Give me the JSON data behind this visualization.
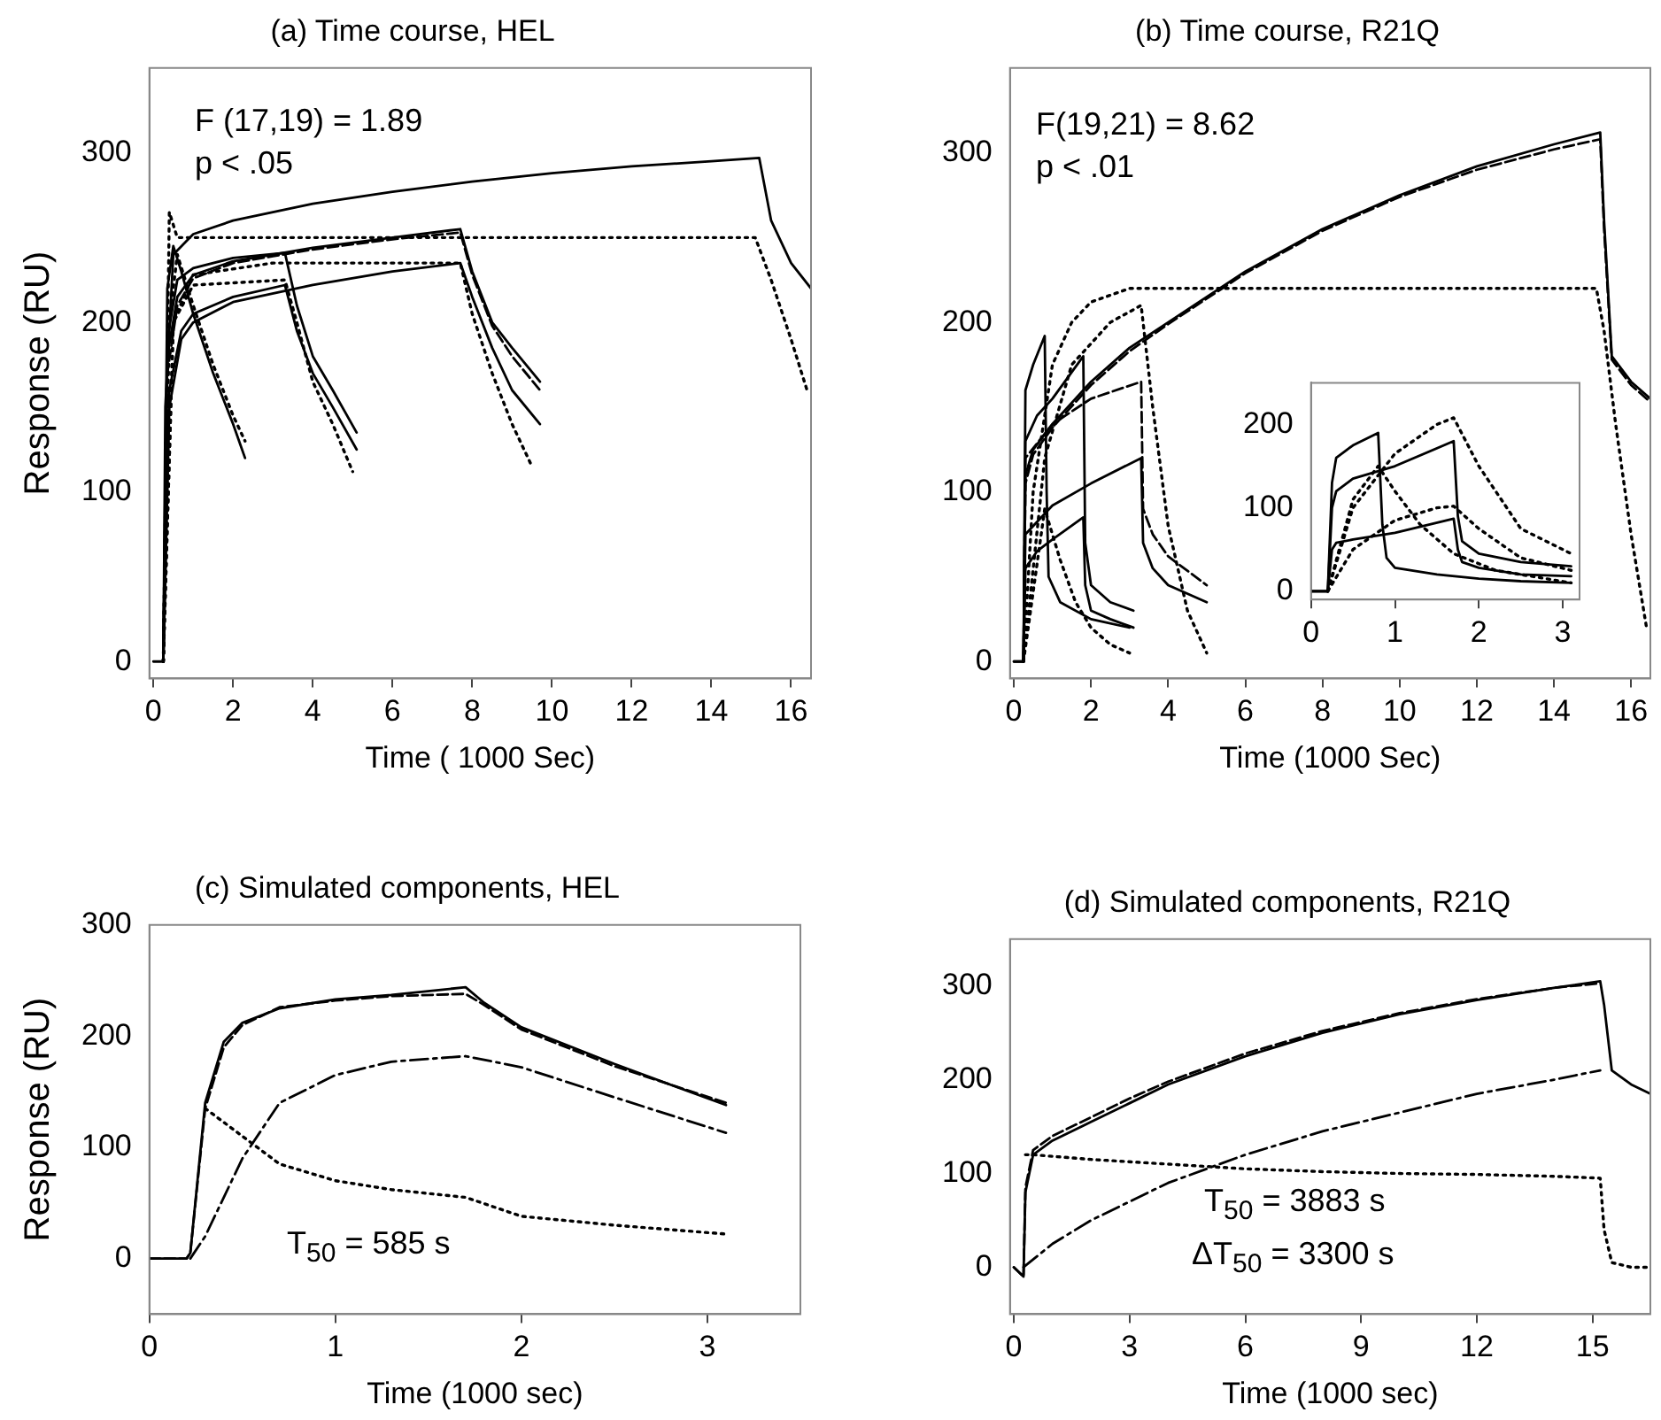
{
  "chart_data": [
    {
      "type": "line",
      "title": "(a) Time course, HEL",
      "xlabel": "Time ( 1000 Sec)",
      "ylabel": "Response (RU)",
      "xlim": [
        -0.1,
        16.5
      ],
      "ylim": [
        -10,
        350
      ],
      "xticks": [
        0,
        2,
        4,
        6,
        8,
        10,
        12,
        14,
        16
      ],
      "yticks": [
        0,
        100,
        200,
        300
      ],
      "marker": "none",
      "annotations": [
        "F (17,19) = 1.89",
        "p < .05"
      ],
      "series": [
        {
          "color": "#000000",
          "line_style": "solid",
          "x": [
            0,
            0.25,
            0.3,
            0.5,
            1,
            2,
            4,
            6,
            8,
            10,
            12,
            14,
            15.2,
            15.5,
            16,
            16.5
          ],
          "values": [
            0,
            0,
            150,
            240,
            252,
            260,
            270,
            277,
            283,
            288,
            292,
            295,
            297,
            260,
            235,
            220
          ]
        },
        {
          "color": "#000000",
          "line_style": "dotted",
          "x": [
            0.25,
            0.4,
            0.6,
            1,
            15.1,
            15.5,
            16,
            16.4
          ],
          "values": [
            0,
            265,
            250,
            250,
            250,
            225,
            190,
            160
          ]
        },
        {
          "color": "#000000",
          "line_style": "solid",
          "x": [
            0.25,
            0.35,
            0.6,
            1,
            2,
            3,
            4,
            6,
            7.7,
            8,
            8.5,
            9,
            9.7
          ],
          "values": [
            0,
            180,
            215,
            228,
            236,
            240,
            244,
            250,
            255,
            230,
            200,
            185,
            165
          ]
        },
        {
          "color": "#000000",
          "line_style": "dashed",
          "x": [
            0.25,
            0.35,
            0.6,
            1,
            2,
            3,
            4,
            6,
            7.7,
            8,
            8.5,
            9,
            9.7
          ],
          "values": [
            0,
            170,
            210,
            226,
            235,
            239,
            243,
            249,
            253,
            228,
            198,
            180,
            160
          ]
        },
        {
          "color": "#000000",
          "line_style": "solid",
          "x": [
            0.25,
            0.4,
            0.7,
            1,
            2,
            4,
            6,
            7.7,
            8,
            8.5,
            9,
            9.7
          ],
          "values": [
            0,
            150,
            190,
            200,
            212,
            222,
            230,
            235,
            215,
            185,
            160,
            140
          ]
        },
        {
          "color": "#000000",
          "line_style": "dotted",
          "x": [
            0.25,
            0.5,
            1,
            3,
            7.7,
            8,
            8.5,
            9,
            9.5
          ],
          "values": [
            0,
            200,
            228,
            235,
            235,
            205,
            170,
            140,
            115
          ]
        },
        {
          "color": "#000000",
          "line_style": "solid",
          "x": [
            0.25,
            0.35,
            0.6,
            1,
            2,
            3.3,
            3.6,
            4,
            4.5,
            5.1
          ],
          "values": [
            0,
            190,
            225,
            232,
            238,
            241,
            210,
            180,
            160,
            135
          ]
        },
        {
          "color": "#000000",
          "line_style": "solid",
          "x": [
            0.25,
            0.4,
            0.7,
            1,
            2,
            3.3,
            3.6,
            4,
            4.5,
            5.1
          ],
          "values": [
            0,
            160,
            195,
            205,
            215,
            222,
            195,
            170,
            150,
            125
          ]
        },
        {
          "color": "#000000",
          "line_style": "dotted",
          "x": [
            0.25,
            0.5,
            1,
            3.3,
            3.6,
            4,
            4.5,
            5
          ],
          "values": [
            0,
            200,
            222,
            225,
            200,
            165,
            140,
            112
          ]
        },
        {
          "color": "#000000",
          "line_style": "solid",
          "x": [
            0.25,
            0.35,
            0.5,
            0.7,
            1,
            1.5,
            2,
            2.3
          ],
          "values": [
            0,
            220,
            245,
            230,
            205,
            170,
            140,
            120
          ]
        },
        {
          "color": "#000000",
          "line_style": "dotted",
          "x": [
            0.25,
            0.4,
            0.6,
            1,
            1.5,
            2,
            2.3
          ],
          "values": [
            0,
            200,
            240,
            210,
            175,
            145,
            130
          ]
        }
      ]
    },
    {
      "type": "line",
      "title": "(b) Time course, R21Q",
      "xlabel": "Time (1000 Sec)",
      "xlim": [
        -0.1,
        16.5
      ],
      "ylim": [
        -10,
        350
      ],
      "xticks": [
        0,
        2,
        4,
        6,
        8,
        10,
        12,
        14,
        16
      ],
      "yticks": [
        0,
        100,
        200,
        300
      ],
      "marker": "none",
      "annotations": [
        "F(19,21) = 8.62",
        "p < .01"
      ],
      "series": [
        {
          "color": "#000000",
          "line_style": "solid",
          "x": [
            0,
            0.25,
            0.3,
            0.5,
            1,
            2,
            3,
            4,
            6,
            8,
            10,
            12,
            14,
            15.2,
            15.3,
            15.5,
            16,
            16.5
          ],
          "values": [
            0,
            0,
            110,
            125,
            140,
            165,
            185,
            200,
            230,
            255,
            275,
            292,
            305,
            312,
            260,
            180,
            165,
            155
          ]
        },
        {
          "color": "#000000",
          "line_style": "dashed",
          "x": [
            0,
            0.25,
            0.3,
            0.5,
            1,
            2,
            3,
            4,
            6,
            8,
            10,
            12,
            14,
            15.2,
            15.3,
            15.5,
            16,
            16.5
          ],
          "values": [
            0,
            0,
            105,
            122,
            138,
            163,
            183,
            199,
            229,
            254,
            274,
            290,
            302,
            308,
            255,
            178,
            163,
            153
          ]
        },
        {
          "color": "#000000",
          "line_style": "dotted",
          "x": [
            0.25,
            0.5,
            1,
            1.5,
            2,
            3,
            4,
            15.1,
            15.3,
            15.6,
            16,
            16.4
          ],
          "values": [
            0,
            100,
            175,
            200,
            212,
            220,
            220,
            220,
            195,
            140,
            75,
            20
          ]
        },
        {
          "color": "#000000",
          "line_style": "solid",
          "x": [
            0.25,
            0.3,
            0.5,
            0.8,
            0.85,
            0.9,
            1.2,
            2,
            3
          ],
          "values": [
            0,
            160,
            175,
            192,
            100,
            50,
            35,
            25,
            20
          ]
        },
        {
          "color": "#000000",
          "line_style": "solid",
          "x": [
            0.25,
            0.3,
            0.6,
            1,
            1.8,
            1.85,
            2,
            2.5,
            3.1
          ],
          "values": [
            0,
            130,
            145,
            155,
            180,
            70,
            45,
            35,
            30
          ]
        },
        {
          "color": "#000000",
          "line_style": "solid",
          "x": [
            0.25,
            0.3,
            0.6,
            1,
            1.8,
            1.85,
            2,
            2.5,
            3.1
          ],
          "values": [
            0,
            55,
            65,
            72,
            85,
            45,
            30,
            25,
            20
          ]
        },
        {
          "color": "#000000",
          "line_style": "solid",
          "x": [
            0.25,
            0.3,
            1,
            2,
            3.3,
            3.35,
            3.6,
            4,
            5
          ],
          "values": [
            0,
            75,
            92,
            105,
            120,
            70,
            55,
            45,
            35
          ]
        },
        {
          "color": "#000000",
          "line_style": "dashed",
          "x": [
            0.25,
            0.3,
            1,
            2,
            3.3,
            3.35,
            3.6,
            4,
            5
          ],
          "values": [
            0,
            120,
            140,
            155,
            165,
            90,
            75,
            62,
            45
          ]
        },
        {
          "color": "#000000",
          "line_style": "dotted",
          "x": [
            0.25,
            0.8,
            1.5,
            2.5,
            3.3,
            3.6,
            4,
            4.5,
            5
          ],
          "values": [
            0,
            120,
            175,
            200,
            210,
            150,
            80,
            30,
            5
          ]
        },
        {
          "color": "#000000",
          "line_style": "dotted",
          "x": [
            0.25,
            0.8,
            1.2,
            1.6,
            2,
            2.5,
            3
          ],
          "values": [
            0,
            90,
            60,
            35,
            20,
            10,
            5
          ]
        }
      ]
    },
    {
      "type": "line",
      "xlim": [
        0,
        3.2
      ],
      "ylim": [
        -10,
        250
      ],
      "xticks": [
        0,
        1,
        2,
        3
      ],
      "yticks": [
        0,
        100,
        200
      ],
      "marker": "none",
      "series": [
        {
          "color": "#000000",
          "line_style": "solid",
          "x": [
            0,
            0.2,
            0.25,
            0.3,
            0.5,
            0.8,
            0.85,
            0.9,
            1,
            1.5,
            2,
            2.5,
            3.1
          ],
          "values": [
            0,
            0,
            130,
            160,
            175,
            190,
            80,
            40,
            28,
            20,
            15,
            12,
            10
          ]
        },
        {
          "color": "#000000",
          "line_style": "solid",
          "x": [
            0,
            0.2,
            0.25,
            0.3,
            0.5,
            1,
            1.7,
            1.75,
            1.8,
            2,
            2.5,
            3.1
          ],
          "values": [
            0,
            0,
            100,
            120,
            135,
            150,
            180,
            90,
            60,
            45,
            35,
            30
          ]
        },
        {
          "color": "#000000",
          "line_style": "solid",
          "x": [
            0,
            0.2,
            0.25,
            0.3,
            0.5,
            1,
            1.7,
            1.75,
            1.8,
            2,
            2.5,
            3.1
          ],
          "values": [
            0,
            0,
            50,
            58,
            62,
            70,
            87,
            50,
            35,
            28,
            20,
            18
          ]
        },
        {
          "color": "#000000",
          "line_style": "dotted",
          "x": [
            0.2,
            0.5,
            1,
            1.5,
            1.7,
            2,
            2.5,
            3.1
          ],
          "values": [
            0,
            100,
            165,
            200,
            208,
            150,
            75,
            45
          ]
        },
        {
          "color": "#000000",
          "line_style": "dotted",
          "x": [
            0.2,
            0.5,
            1,
            1.5,
            1.7,
            2,
            2.5,
            3.1
          ],
          "values": [
            0,
            50,
            85,
            100,
            102,
            75,
            40,
            25
          ]
        },
        {
          "color": "#000000",
          "line_style": "dotted",
          "x": [
            0.2,
            0.5,
            0.8,
            1,
            1.3,
            1.7,
            2.2,
            3.1
          ],
          "values": [
            0,
            110,
            150,
            120,
            80,
            45,
            25,
            10
          ]
        }
      ]
    },
    {
      "type": "line",
      "title": "(c) Simulated components, HEL",
      "xlabel": "Time (1000 sec)",
      "ylabel": "Response (RU)",
      "xlim": [
        0,
        3.5
      ],
      "ylim": [
        -50,
        300
      ],
      "xticks": [
        0,
        1,
        2,
        3
      ],
      "yticks": [
        0,
        100,
        200,
        300
      ],
      "marker": "none",
      "annotations": [
        "T$_{50}$ = 585 s"
      ],
      "series": [
        {
          "color": "#000000",
          "line_style": "solid",
          "x": [
            0,
            0.2,
            0.22,
            0.3,
            0.4,
            0.5,
            0.7,
            1,
            1.3,
            1.7,
            1.8,
            2,
            2.5,
            3.1
          ],
          "values": [
            0,
            0,
            5,
            140,
            195,
            212,
            225,
            233,
            237,
            244,
            230,
            208,
            175,
            138
          ]
        },
        {
          "color": "#000000",
          "line_style": "dashed",
          "x": [
            0,
            0.2,
            0.22,
            0.3,
            0.4,
            0.5,
            0.7,
            1,
            1.3,
            1.7,
            1.8,
            2,
            2.5,
            3.1
          ],
          "values": [
            0,
            0,
            5,
            135,
            190,
            210,
            226,
            232,
            236,
            238,
            228,
            206,
            173,
            140
          ]
        },
        {
          "color": "#000000",
          "line_style": "dashdot",
          "x": [
            0.22,
            0.3,
            0.5,
            0.7,
            1,
            1.3,
            1.7,
            2,
            2.5,
            3.1
          ],
          "values": [
            0,
            20,
            90,
            140,
            165,
            177,
            182,
            172,
            145,
            113
          ]
        },
        {
          "color": "#000000",
          "line_style": "dotted",
          "x": [
            0.3,
            0.5,
            0.7,
            1,
            1.3,
            1.7,
            2,
            2.5,
            3.1
          ],
          "values": [
            135,
            110,
            85,
            70,
            62,
            55,
            38,
            30,
            22
          ]
        }
      ]
    },
    {
      "type": "line",
      "title": "(d) Simulated components, R21Q",
      "xlabel": "Time (1000 sec)",
      "xlim": [
        -0.1,
        16.5
      ],
      "ylim": [
        -50,
        350
      ],
      "xticks": [
        0,
        3,
        6,
        9,
        12,
        15
      ],
      "yticks": [
        0,
        100,
        200,
        300
      ],
      "marker": "none",
      "annotations": [
        "T$_{50}$ = 3883 s",
        "ΔT$_{50}$ = 3300 s"
      ],
      "series": [
        {
          "color": "#000000",
          "line_style": "solid",
          "x": [
            0,
            0.25,
            0.3,
            0.5,
            1,
            2,
            3,
            4,
            6,
            8,
            10,
            12,
            14,
            15.2,
            15.3,
            15.5,
            16,
            16.5
          ],
          "values": [
            0,
            -10,
            80,
            120,
            135,
            155,
            175,
            195,
            225,
            250,
            270,
            285,
            298,
            305,
            280,
            210,
            195,
            185
          ]
        },
        {
          "color": "#000000",
          "line_style": "dashed",
          "x": [
            0,
            0.25,
            0.3,
            0.5,
            1,
            2,
            3,
            4,
            6,
            8,
            10,
            12,
            14,
            15.2
          ],
          "values": [
            0,
            -10,
            85,
            125,
            140,
            160,
            180,
            198,
            228,
            252,
            271,
            286,
            298,
            303
          ]
        },
        {
          "color": "#000000",
          "line_style": "dashdot",
          "x": [
            0.25,
            1,
            2,
            3,
            4,
            6,
            8,
            10,
            12,
            14,
            15.2
          ],
          "values": [
            0,
            25,
            50,
            70,
            90,
            120,
            145,
            165,
            185,
            200,
            210
          ]
        },
        {
          "color": "#000000",
          "line_style": "dotted",
          "x": [
            0.3,
            0.5,
            2,
            4,
            6,
            8,
            10,
            12,
            14,
            15.2,
            15.3,
            15.5,
            16,
            16.5
          ],
          "values": [
            120,
            120,
            115,
            110,
            105,
            102,
            100,
            99,
            97,
            95,
            40,
            5,
            0,
            0
          ]
        }
      ]
    }
  ]
}
